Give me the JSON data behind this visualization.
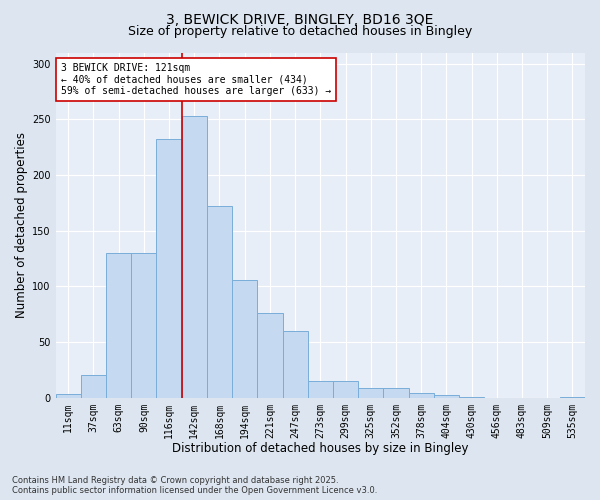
{
  "title_line1": "3, BEWICK DRIVE, BINGLEY, BD16 3QE",
  "title_line2": "Size of property relative to detached houses in Bingley",
  "xlabel": "Distribution of detached houses by size in Bingley",
  "ylabel": "Number of detached properties",
  "categories": [
    "11sqm",
    "37sqm",
    "63sqm",
    "90sqm",
    "116sqm",
    "142sqm",
    "168sqm",
    "194sqm",
    "221sqm",
    "247sqm",
    "273sqm",
    "299sqm",
    "325sqm",
    "352sqm",
    "378sqm",
    "404sqm",
    "430sqm",
    "456sqm",
    "483sqm",
    "509sqm",
    "535sqm"
  ],
  "values": [
    3,
    20,
    130,
    130,
    232,
    253,
    172,
    106,
    76,
    60,
    15,
    15,
    9,
    9,
    4,
    2,
    1,
    0,
    0,
    0,
    1
  ],
  "bar_color": "#c5d9f0",
  "bar_edge_color": "#7aadda",
  "vline_x_index": 4.5,
  "vline_color": "#cc0000",
  "annotation_text": "3 BEWICK DRIVE: 121sqm\n← 40% of detached houses are smaller (434)\n59% of semi-detached houses are larger (633) →",
  "annotation_box_facecolor": "#ffffff",
  "annotation_box_edgecolor": "#cc0000",
  "ylim": [
    0,
    310
  ],
  "yticks": [
    0,
    50,
    100,
    150,
    200,
    250,
    300
  ],
  "footer_line1": "Contains HM Land Registry data © Crown copyright and database right 2025.",
  "footer_line2": "Contains public sector information licensed under the Open Government Licence v3.0.",
  "bg_color": "#dde6f0",
  "plot_bg_color": "#e8eef7",
  "grid_color": "#ffffff",
  "title_fontsize": 10,
  "subtitle_fontsize": 9,
  "tick_fontsize": 7,
  "label_fontsize": 8.5,
  "footer_fontsize": 6,
  "annotation_fontsize": 7
}
